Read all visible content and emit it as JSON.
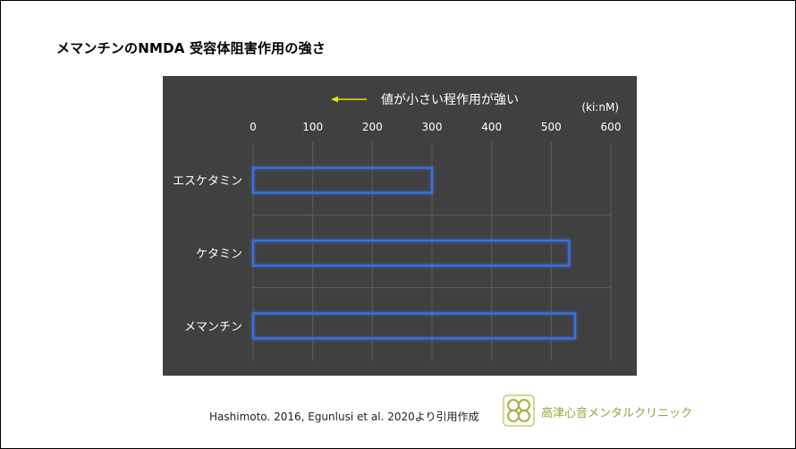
{
  "slide": {
    "title": "メマンチンのNMDA 受容体阻害作用の強さ",
    "source": "Hashimoto. 2016, Egunlusi et al. 2020より引用作成",
    "clinic_name": "高津心音メンタルクリニック"
  },
  "chart_data": {
    "type": "bar",
    "orientation": "horizontal",
    "annotation": "値が小さい程作用が強い",
    "unit_label": "(ki:nM)",
    "categories": [
      "エスケタミン",
      "ケタミン",
      "メマンチン"
    ],
    "values": [
      300,
      530,
      540
    ],
    "xlim": [
      0,
      600
    ],
    "xticks": [
      "0",
      "100",
      "200",
      "300",
      "400",
      "500",
      "600"
    ],
    "grid": true,
    "colors": {
      "background": "#404040",
      "bar_edge": "#3a6fe0",
      "arrow": "#e8e000",
      "text": "#ffffff",
      "grid": "#5c5c5c"
    }
  }
}
